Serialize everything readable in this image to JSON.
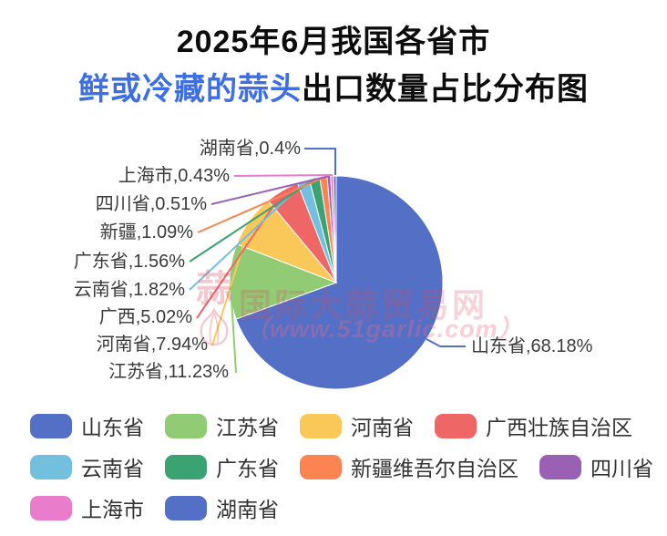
{
  "title": {
    "line1": "2025年6月我国各省市",
    "line2_highlight": "鲜或冷藏的蒜头",
    "line2_rest": "出口数量占比分布图",
    "highlight_color": "#3D6EE2"
  },
  "watermark": {
    "logo_char": "蒜",
    "site_name": "国际大蒜贸易网",
    "site_url": "（www.51garlic.com）"
  },
  "chart_data": {
    "type": "pie",
    "title": "2025年6月我国各省市鲜或冷藏的蒜头出口数量占比分布图",
    "unit": "%",
    "start_angle_deg": 0,
    "direction": "clockwise",
    "label_position": "outside-with-leader-lines",
    "slices": [
      {
        "name": "山东省",
        "value": 68.18,
        "label": "山东省,68.18%",
        "color": "#5470C6"
      },
      {
        "name": "江苏省",
        "value": 11.23,
        "label": "江苏省,11.23%",
        "color": "#91CC75"
      },
      {
        "name": "河南省",
        "value": 7.94,
        "label": "河南省,7.94%",
        "color": "#FAC858"
      },
      {
        "name": "广西",
        "value": 5.02,
        "label": "广西,5.02%",
        "color": "#EE6666"
      },
      {
        "name": "云南省",
        "value": 1.82,
        "label": "云南省,1.82%",
        "color": "#73C0DE"
      },
      {
        "name": "广东省",
        "value": 1.56,
        "label": "广东省,1.56%",
        "color": "#3BA272"
      },
      {
        "name": "新疆",
        "value": 1.09,
        "label": "新疆,1.09%",
        "color": "#FC8452"
      },
      {
        "name": "四川省",
        "value": 0.51,
        "label": "四川省,0.51%",
        "color": "#9A60B4"
      },
      {
        "name": "上海市",
        "value": 0.43,
        "label": "上海市,0.43%",
        "color": "#EA7CCC"
      },
      {
        "name": "湖南省",
        "value": 0.4,
        "label": "湖南省,0.4%",
        "color": "#5470C6"
      }
    ],
    "legend": {
      "position": "bottom",
      "rows": [
        [
          0,
          1,
          2,
          3
        ],
        [
          4,
          5,
          6,
          7
        ],
        [
          8,
          9
        ]
      ],
      "items": [
        {
          "label": "山东省",
          "color": "#5470C6"
        },
        {
          "label": "江苏省",
          "color": "#91CC75"
        },
        {
          "label": "河南省",
          "color": "#FAC858"
        },
        {
          "label": "广西壮族自治区",
          "color": "#EE6666"
        },
        {
          "label": "云南省",
          "color": "#73C0DE"
        },
        {
          "label": "广东省",
          "color": "#3BA272"
        },
        {
          "label": "新疆维吾尔自治区",
          "color": "#FC8452"
        },
        {
          "label": "四川省",
          "color": "#9A60B4"
        },
        {
          "label": "上海市",
          "color": "#EA7CCC"
        },
        {
          "label": "湖南省",
          "color": "#5470C6"
        }
      ]
    }
  }
}
